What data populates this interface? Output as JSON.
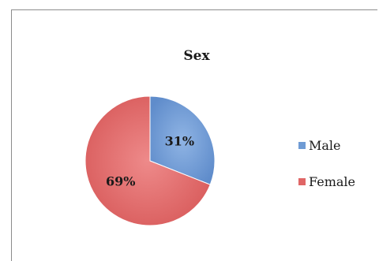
{
  "chart_data": {
    "type": "pie",
    "title": "Sex",
    "slices": [
      {
        "label": "Male",
        "value": 31,
        "display": "31%",
        "color": "#6f9bd4"
      },
      {
        "label": "Female",
        "value": 69,
        "display": "69%",
        "color": "#e06666"
      }
    ],
    "start_angle_deg": 0,
    "direction": "clockwise",
    "legend": "right"
  }
}
